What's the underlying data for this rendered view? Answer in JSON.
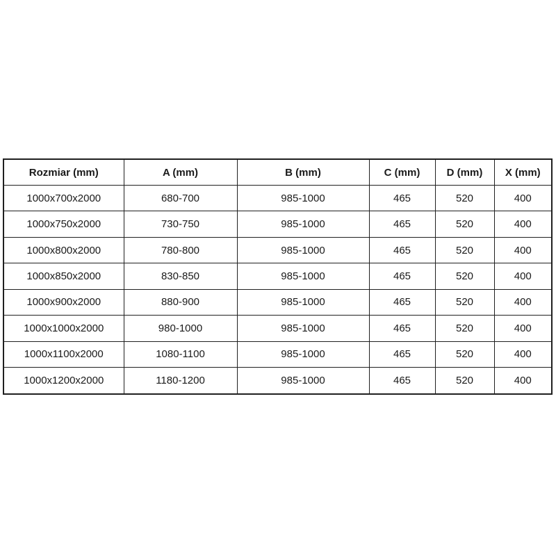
{
  "colors": {
    "background": "#ffffff",
    "border": "#1f1f1f",
    "text": "#1a1a1a"
  },
  "table": {
    "headers": [
      "Rozmiar (mm)",
      "A (mm)",
      "B (mm)",
      "C (mm)",
      "D (mm)",
      "X (mm)"
    ],
    "rows": [
      [
        "1000x700x2000",
        "680-700",
        "985-1000",
        "465",
        "520",
        "400"
      ],
      [
        "1000x750x2000",
        "730-750",
        "985-1000",
        "465",
        "520",
        "400"
      ],
      [
        "1000x800x2000",
        "780-800",
        "985-1000",
        "465",
        "520",
        "400"
      ],
      [
        "1000x850x2000",
        "830-850",
        "985-1000",
        "465",
        "520",
        "400"
      ],
      [
        "1000x900x2000",
        "880-900",
        "985-1000",
        "465",
        "520",
        "400"
      ],
      [
        "1000x1000x2000",
        "980-1000",
        "985-1000",
        "465",
        "520",
        "400"
      ],
      [
        "1000x1100x2000",
        "1080-1100",
        "985-1000",
        "465",
        "520",
        "400"
      ],
      [
        "1000x1200x2000",
        "1180-1200",
        "985-1000",
        "465",
        "520",
        "400"
      ]
    ]
  }
}
